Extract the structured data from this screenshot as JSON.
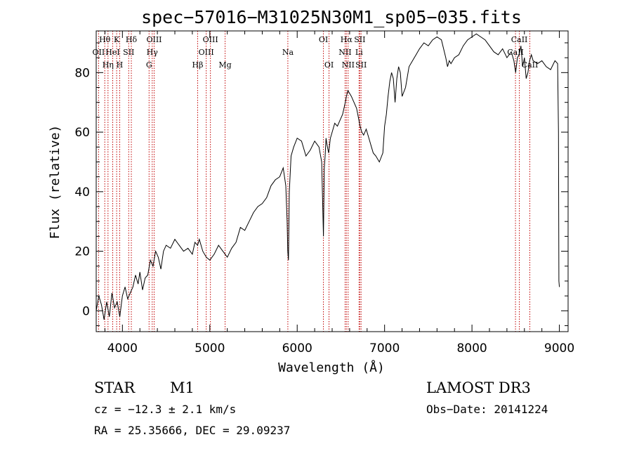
{
  "chart_data": {
    "type": "line",
    "title": "spec−57016−M31025N30M1_sp05−035.fits",
    "xlabel": "Wavelength (Å)",
    "ylabel": "Flux (relative)",
    "xlim": [
      3700,
      9100
    ],
    "ylim": [
      -7,
      94
    ],
    "xticks": [
      4000,
      5000,
      6000,
      7000,
      8000,
      9000
    ],
    "yticks": [
      0,
      20,
      40,
      60,
      80
    ],
    "grid": false,
    "series": [
      {
        "name": "spectrum",
        "x": [
          3700,
          3730,
          3760,
          3790,
          3820,
          3850,
          3880,
          3910,
          3940,
          3970,
          4000,
          4030,
          4060,
          4090,
          4120,
          4150,
          4180,
          4200,
          4230,
          4260,
          4290,
          4320,
          4350,
          4380,
          4410,
          4440,
          4470,
          4500,
          4550,
          4600,
          4650,
          4700,
          4750,
          4800,
          4830,
          4860,
          4880,
          4920,
          4960,
          5000,
          5050,
          5100,
          5150,
          5200,
          5250,
          5300,
          5350,
          5400,
          5450,
          5500,
          5550,
          5600,
          5650,
          5700,
          5750,
          5800,
          5840,
          5870,
          5885,
          5892,
          5900,
          5910,
          5930,
          5960,
          6000,
          6050,
          6100,
          6150,
          6200,
          6250,
          6280,
          6300,
          6310,
          6320,
          6330,
          6340,
          6360,
          6380,
          6400,
          6430,
          6460,
          6490,
          6520,
          6550,
          6563,
          6580,
          6600,
          6620,
          6650,
          6680,
          6700,
          6720,
          6740,
          6760,
          6790,
          6820,
          6850,
          6870,
          6900,
          6940,
          6980,
          7000,
          7020,
          7040,
          7060,
          7080,
          7100,
          7120,
          7140,
          7160,
          7180,
          7200,
          7240,
          7280,
          7320,
          7360,
          7400,
          7450,
          7500,
          7550,
          7600,
          7650,
          7700,
          7720,
          7740,
          7760,
          7800,
          7850,
          7900,
          7950,
          8000,
          8050,
          8100,
          8150,
          8200,
          8250,
          8300,
          8350,
          8400,
          8450,
          8480,
          8500,
          8520,
          8540,
          8560,
          8580,
          8600,
          8620,
          8640,
          8660,
          8680,
          8700,
          8750,
          8800,
          8850,
          8900,
          8950,
          8980,
          8990,
          8995,
          9000
        ],
        "values": [
          0,
          5,
          2,
          -3,
          3,
          -2,
          6,
          1,
          3,
          -2,
          5,
          8,
          4,
          6,
          8,
          12,
          9,
          13,
          7,
          11,
          12,
          17,
          15,
          20,
          18,
          14,
          20,
          22,
          21,
          24,
          22,
          20,
          21,
          19,
          23,
          22,
          24,
          20,
          18,
          17,
          19,
          22,
          20,
          18,
          21,
          23,
          28,
          27,
          30,
          33,
          35,
          36,
          38,
          42,
          44,
          45,
          48,
          42,
          30,
          20,
          17,
          40,
          52,
          55,
          58,
          57,
          52,
          54,
          57,
          55,
          50,
          25,
          48,
          52,
          58,
          56,
          53,
          58,
          60,
          63,
          62,
          64,
          66,
          70,
          72,
          74,
          73,
          72,
          70,
          68,
          65,
          62,
          60,
          59,
          61,
          58,
          55,
          53,
          52,
          50,
          53,
          62,
          66,
          72,
          77,
          80,
          78,
          70,
          78,
          82,
          80,
          72,
          75,
          82,
          84,
          86,
          88,
          90,
          89,
          91,
          92,
          91,
          85,
          82,
          84,
          83,
          85,
          86,
          89,
          91,
          92,
          93,
          92,
          91,
          89,
          87,
          86,
          88,
          85,
          87,
          84,
          80,
          85,
          86,
          89,
          82,
          85,
          78,
          80,
          84,
          86,
          84,
          83,
          84,
          82,
          81,
          84,
          83,
          60,
          10,
          8
        ]
      }
    ],
    "lines": [
      {
        "name": "O II",
        "x": 3727,
        "label": "OII",
        "row": 1
      },
      {
        "name": "H theta",
        "x": 3798,
        "label": "Hθ",
        "row": 0
      },
      {
        "name": "H eta",
        "x": 3835,
        "label": "Hη",
        "row": 2
      },
      {
        "name": "He I",
        "x": 3889,
        "label": "HeI",
        "row": 1
      },
      {
        "name": "K",
        "x": 3934,
        "label": "K",
        "row": 0
      },
      {
        "name": "H",
        "x": 3969,
        "label": "H",
        "row": 2
      },
      {
        "name": "S II",
        "x": 4072,
        "label": "SII",
        "row": 1
      },
      {
        "name": "H delta",
        "x": 4102,
        "label": "Hδ",
        "row": 0
      },
      {
        "name": "G",
        "x": 4305,
        "label": "G",
        "row": 2
      },
      {
        "name": "H gamma",
        "x": 4341,
        "label": "Hγ",
        "row": 1
      },
      {
        "name": "O III 4363",
        "x": 4363,
        "label": "OIII",
        "row": 0
      },
      {
        "name": "H beta",
        "x": 4861,
        "label": "Hβ",
        "row": 2
      },
      {
        "name": "O III 4959",
        "x": 4959,
        "label": "OIII",
        "row": 1
      },
      {
        "name": "O III 5007",
        "x": 5007,
        "label": "OIII",
        "row": 0
      },
      {
        "name": "Mg",
        "x": 5175,
        "label": "Mg",
        "row": 2
      },
      {
        "name": "Na",
        "x": 5893,
        "label": "Na",
        "row": 1
      },
      {
        "name": "O I 6300",
        "x": 6300,
        "label": "OI",
        "row": 0
      },
      {
        "name": "O I 6364",
        "x": 6364,
        "label": "OI",
        "row": 2
      },
      {
        "name": "N II 6548",
        "x": 6548,
        "label": "NII",
        "row": 1
      },
      {
        "name": "H alpha",
        "x": 6563,
        "label": "Hα",
        "row": 0
      },
      {
        "name": "N II 6583",
        "x": 6583,
        "label": "NII",
        "row": 2
      },
      {
        "name": "Li",
        "x": 6708,
        "label": "Li",
        "row": 1
      },
      {
        "name": "S II 6716",
        "x": 6716,
        "label": "SII",
        "row": 0
      },
      {
        "name": "S II 6731",
        "x": 6731,
        "label": "SII",
        "row": 2
      },
      {
        "name": "Ca II 8498",
        "x": 8498,
        "label": "CaII",
        "row": 1
      },
      {
        "name": "Ca II 8542",
        "x": 8542,
        "label": "CaII",
        "row": 0
      },
      {
        "name": "Ca II 8662",
        "x": 8662,
        "label": "CaII",
        "row": 2
      }
    ]
  },
  "info": {
    "object_class": "STAR",
    "subclass": "M1",
    "survey": "LAMOST DR3",
    "cz": "cz = −12.3 ± 2.1 km/s",
    "obs_date": "Obs−Date: 20141224",
    "coords": "RA =  25.35666, DEC =  29.09237"
  },
  "colors": {
    "spectrum": "#000000",
    "line_marker": "#c00000",
    "axis": "#000000"
  }
}
